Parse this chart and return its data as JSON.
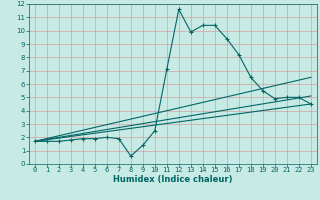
{
  "xlabel": "Humidex (Indice chaleur)",
  "xlim": [
    -0.5,
    23.5
  ],
  "ylim": [
    0,
    12
  ],
  "xticks": [
    0,
    1,
    2,
    3,
    4,
    5,
    6,
    7,
    8,
    9,
    10,
    11,
    12,
    13,
    14,
    15,
    16,
    17,
    18,
    19,
    20,
    21,
    22,
    23
  ],
  "yticks": [
    0,
    1,
    2,
    3,
    4,
    5,
    6,
    7,
    8,
    9,
    10,
    11,
    12
  ],
  "bg_color": "#c8eae4",
  "grid_color": "#d4a0a0",
  "line_color": "#006666",
  "line1_x": [
    0,
    1,
    2,
    3,
    4,
    5,
    6,
    7,
    8,
    9,
    10,
    11,
    12,
    13,
    14,
    15,
    16,
    17,
    18,
    19,
    20,
    21,
    22,
    23
  ],
  "line1_y": [
    1.7,
    1.7,
    1.7,
    1.8,
    1.9,
    1.9,
    2.0,
    1.9,
    0.6,
    1.4,
    2.5,
    7.1,
    11.6,
    9.9,
    10.4,
    10.4,
    9.4,
    8.2,
    6.5,
    5.5,
    4.9,
    5.0,
    5.0,
    4.5
  ],
  "line2_x": [
    0,
    23
  ],
  "line2_y": [
    1.7,
    6.5
  ],
  "line3_x": [
    0,
    23
  ],
  "line3_y": [
    1.7,
    5.1
  ],
  "line4_x": [
    0,
    23
  ],
  "line4_y": [
    1.7,
    4.5
  ],
  "tick_fontsize": 5.0,
  "xlabel_fontsize": 6.0,
  "xlabel_bold": true
}
